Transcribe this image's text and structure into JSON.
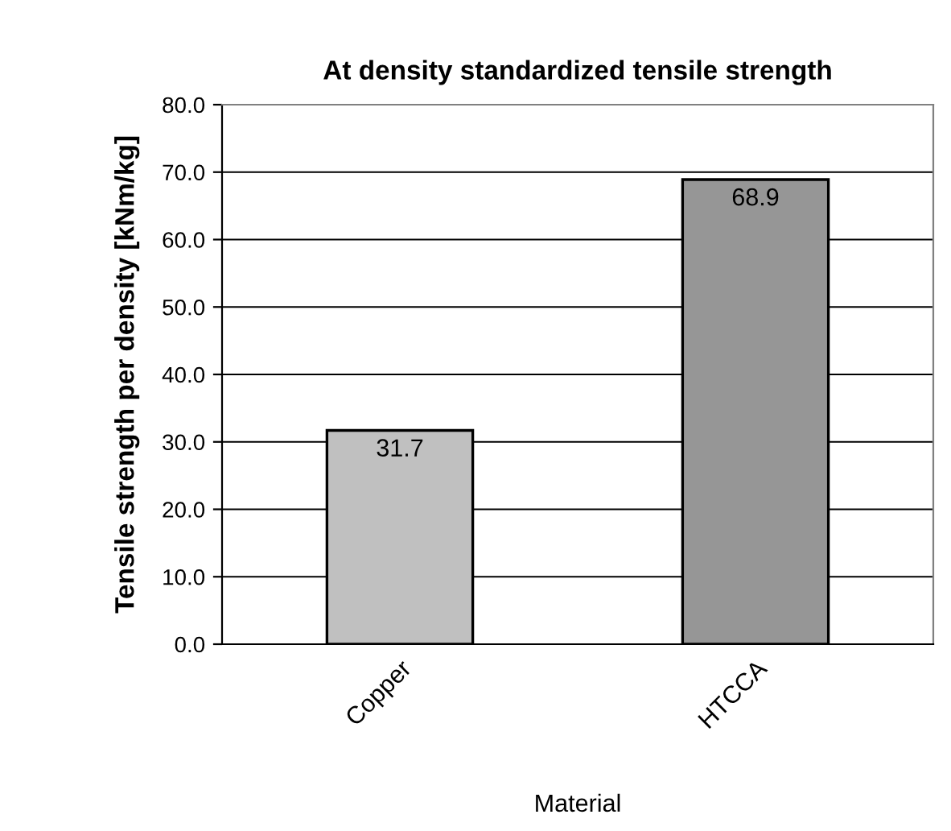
{
  "chart_data": {
    "type": "bar",
    "title": "At density standardized tensile strength",
    "xlabel": "Material",
    "ylabel": "Tensile strength per density [kNm/kg]",
    "categories": [
      "Copper",
      "HTCCA"
    ],
    "values": [
      31.7,
      68.9
    ],
    "colors": [
      "#c0c0c0",
      "#969696"
    ],
    "ylim": [
      0,
      80
    ],
    "yticks": [
      {
        "value": 0,
        "label": "0.0"
      },
      {
        "value": 10,
        "label": "10.0"
      },
      {
        "value": 20,
        "label": "20.0"
      },
      {
        "value": 30,
        "label": "30.0"
      },
      {
        "value": 40,
        "label": "40.0"
      },
      {
        "value": 50,
        "label": "50.0"
      },
      {
        "value": 60,
        "label": "60.0"
      },
      {
        "value": 70,
        "label": "70.0"
      },
      {
        "value": 80,
        "label": "80.0"
      }
    ],
    "grid": "y",
    "data_labels": true
  }
}
